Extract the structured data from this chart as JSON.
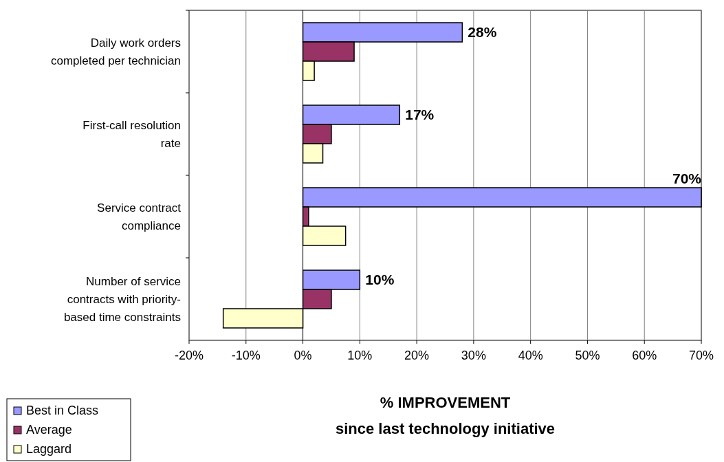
{
  "chart_data": {
    "type": "bar",
    "orientation": "horizontal",
    "xlabel": "% IMPROVEMENT\nsince last technology initiative",
    "categories": [
      "Daily work orders completed per technician",
      "First-call resolution rate",
      "Service contract compliance",
      "Number of service contracts with priority-based time constraints"
    ],
    "series": [
      {
        "name": "Best in Class",
        "color": "#9999ff",
        "values": [
          28,
          17,
          70,
          10
        ],
        "value_labels": [
          "28%",
          "17%",
          "70%",
          "10%"
        ]
      },
      {
        "name": "Average",
        "color": "#993366",
        "values": [
          9,
          5,
          1,
          5
        ]
      },
      {
        "name": "Laggard",
        "color": "#ffffcc",
        "values": [
          2,
          3.5,
          7.5,
          -14
        ]
      }
    ],
    "xlim": [
      -20,
      70
    ],
    "xticks": [
      {
        "value": -20,
        "label": "-20%"
      },
      {
        "value": -10,
        "label": "-10%"
      },
      {
        "value": 0,
        "label": "0%"
      },
      {
        "value": 10,
        "label": "10%"
      },
      {
        "value": 20,
        "label": "20%"
      },
      {
        "value": 30,
        "label": "30%"
      },
      {
        "value": 40,
        "label": "40%"
      },
      {
        "value": 50,
        "label": "50%"
      },
      {
        "value": 60,
        "label": "60%"
      },
      {
        "value": 70,
        "label": "70%"
      }
    ],
    "grid": "x",
    "legend": "bottom left"
  }
}
